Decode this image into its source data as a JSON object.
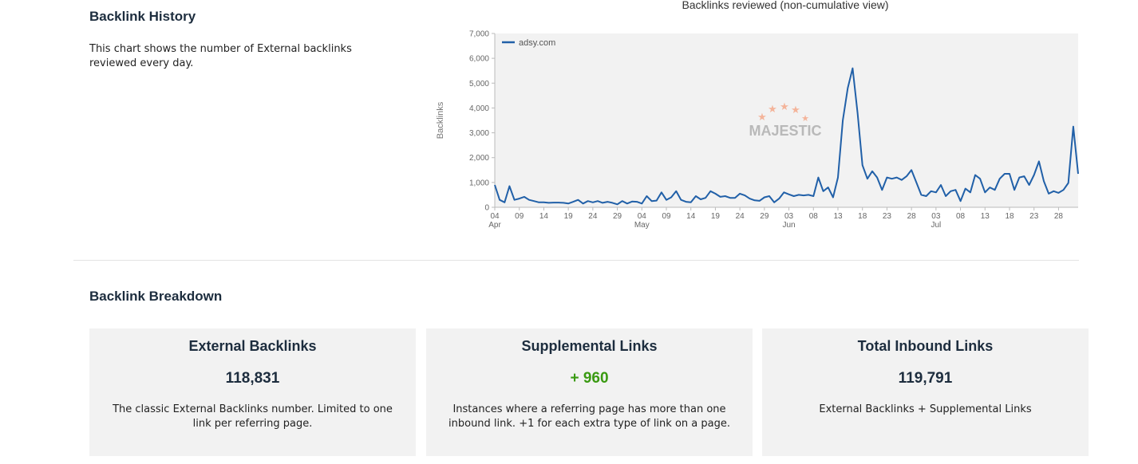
{
  "history": {
    "title": "Backlink History",
    "description": "This chart shows the number of External backlinks reviewed every day."
  },
  "chart_data": {
    "type": "line",
    "title": "Backlinks reviewed (non-cumulative view)",
    "xlabel": "",
    "ylabel": "Backlinks",
    "ylim": [
      0,
      7000
    ],
    "yticks": [
      "0",
      "1,000",
      "2,000",
      "3,000",
      "4,000",
      "5,000",
      "6,000",
      "7,000"
    ],
    "grid": false,
    "legend_position": "top-left",
    "watermark": "MAJESTIC",
    "x_start": "04 Apr",
    "x_end": "31 Jul",
    "xticks": [
      {
        "day": "04",
        "month": "Apr"
      },
      {
        "day": "09",
        "month": ""
      },
      {
        "day": "14",
        "month": ""
      },
      {
        "day": "19",
        "month": ""
      },
      {
        "day": "24",
        "month": ""
      },
      {
        "day": "29",
        "month": ""
      },
      {
        "day": "04",
        "month": "May"
      },
      {
        "day": "09",
        "month": ""
      },
      {
        "day": "14",
        "month": ""
      },
      {
        "day": "19",
        "month": ""
      },
      {
        "day": "24",
        "month": ""
      },
      {
        "day": "29",
        "month": ""
      },
      {
        "day": "03",
        "month": "Jun"
      },
      {
        "day": "08",
        "month": ""
      },
      {
        "day": "13",
        "month": ""
      },
      {
        "day": "18",
        "month": ""
      },
      {
        "day": "23",
        "month": ""
      },
      {
        "day": "28",
        "month": ""
      },
      {
        "day": "03",
        "month": "Jul"
      },
      {
        "day": "08",
        "month": ""
      },
      {
        "day": "13",
        "month": ""
      },
      {
        "day": "18",
        "month": ""
      },
      {
        "day": "23",
        "month": ""
      },
      {
        "day": "28",
        "month": ""
      }
    ],
    "series": [
      {
        "name": "adsy.com",
        "color": "#2160a8",
        "values": [
          900,
          300,
          200,
          850,
          300,
          350,
          420,
          300,
          250,
          200,
          200,
          180,
          190,
          190,
          180,
          150,
          220,
          300,
          150,
          250,
          200,
          250,
          180,
          220,
          180,
          120,
          250,
          150,
          230,
          220,
          150,
          450,
          250,
          270,
          600,
          300,
          400,
          650,
          300,
          220,
          200,
          450,
          320,
          380,
          650,
          550,
          420,
          450,
          380,
          380,
          550,
          480,
          350,
          280,
          260,
          400,
          450,
          200,
          350,
          600,
          520,
          450,
          500,
          480,
          500,
          450,
          1200,
          650,
          800,
          400,
          1200,
          3500,
          4800,
          5600,
          3800,
          1700,
          1150,
          1450,
          1200,
          700,
          1200,
          1150,
          1200,
          1100,
          1250,
          1500,
          1000,
          500,
          450,
          650,
          600,
          900,
          450,
          650,
          700,
          250,
          750,
          600,
          1300,
          1150,
          600,
          800,
          700,
          1150,
          1350,
          1350,
          700,
          1200,
          1250,
          900,
          1300,
          1850,
          1050,
          550,
          650,
          580,
          700,
          980,
          3250,
          1350
        ]
      }
    ]
  },
  "breakdown": {
    "title": "Backlink Breakdown",
    "cards": [
      {
        "title": "External Backlinks",
        "value": "118,831",
        "description": "The classic External Backlinks number. Limited to one link per referring page."
      },
      {
        "title": "Supplemental Links",
        "value": "+ 960",
        "value_color": "#3a9a12",
        "description": "Instances where a referring page has more than one inbound link. +1 for each extra type of link on a page."
      },
      {
        "title": "Total Inbound Links",
        "value": "119,791",
        "description": "External Backlinks + Supplemental Links"
      }
    ]
  }
}
